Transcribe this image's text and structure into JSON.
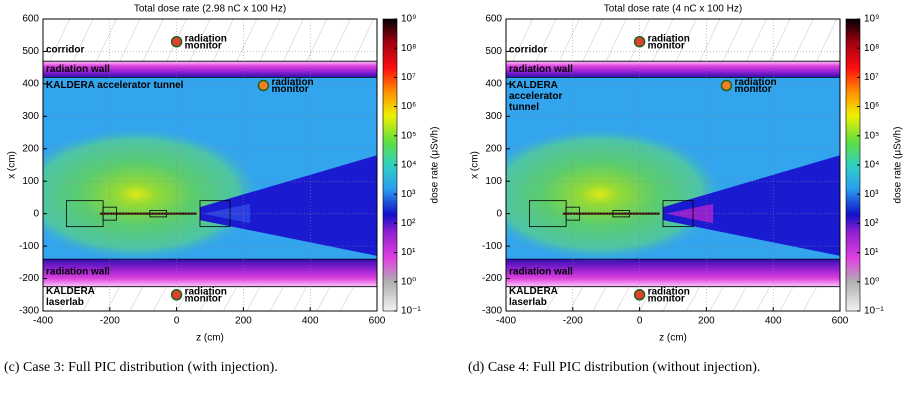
{
  "chart_data": [
    {
      "type": "heatmap",
      "title": "Total dose rate (2.98 nC x 100 Hz)",
      "x_label": "z (cm)",
      "y_label": "x (cm)",
      "xlim": [
        -400,
        600
      ],
      "xticks": [
        -400,
        -200,
        0,
        200,
        400,
        600
      ],
      "ylim": [
        -300,
        600
      ],
      "yticks": [
        -300,
        -200,
        -100,
        0,
        100,
        200,
        300,
        400,
        500,
        600
      ],
      "grid": true,
      "colorbar_label": "dose rate (μSv/h)",
      "colorbar_log": true,
      "clim": [
        0.1,
        1000000000
      ],
      "cticks": [
        {
          "value": 0.1,
          "label": "10⁻¹"
        },
        {
          "value": 1,
          "label": "10⁰"
        },
        {
          "value": 10,
          "label": "10¹"
        },
        {
          "value": 100,
          "label": "10²"
        },
        {
          "value": 1000,
          "label": "10³"
        },
        {
          "value": 10000,
          "label": "10⁴"
        },
        {
          "value": 100000,
          "label": "10⁵"
        },
        {
          "value": 1000000,
          "label": "10⁶"
        },
        {
          "value": 10000000,
          "label": "10⁷"
        },
        {
          "value": 100000000,
          "label": "10⁸"
        },
        {
          "value": 1000000000,
          "label": "10⁹"
        }
      ],
      "annotations": {
        "corridor": "corridor",
        "wall": "radiation wall",
        "tunnel": [
          "KALDERA accelerator tunnel"
        ],
        "laserlab": [
          "KALDERA",
          "laserlab"
        ],
        "monitor": [
          "radiation",
          "monitor"
        ]
      },
      "caption": "(c) Case 3: Full PIC distribution (with injection)."
    },
    {
      "type": "heatmap",
      "title": "Total dose rate (4 nC x 100 Hz)",
      "x_label": "z (cm)",
      "y_label": "x (cm)",
      "xlim": [
        -400,
        600
      ],
      "xticks": [
        -400,
        -200,
        0,
        200,
        400,
        600
      ],
      "ylim": [
        -300,
        600
      ],
      "yticks": [
        -300,
        -200,
        -100,
        0,
        100,
        200,
        300,
        400,
        500,
        600
      ],
      "grid": true,
      "colorbar_label": "dose rate (μSv/h)",
      "colorbar_log": true,
      "clim": [
        0.1,
        1000000000
      ],
      "cticks": [
        {
          "value": 0.1,
          "label": "10⁻¹"
        },
        {
          "value": 1,
          "label": "10⁰"
        },
        {
          "value": 10,
          "label": "10¹"
        },
        {
          "value": 100,
          "label": "10²"
        },
        {
          "value": 1000,
          "label": "10³"
        },
        {
          "value": 10000,
          "label": "10⁴"
        },
        {
          "value": 100000,
          "label": "10⁵"
        },
        {
          "value": 1000000,
          "label": "10⁶"
        },
        {
          "value": 10000000,
          "label": "10⁷"
        },
        {
          "value": 100000000,
          "label": "10⁸"
        },
        {
          "value": 1000000000,
          "label": "10⁹"
        }
      ],
      "annotations": {
        "corridor": "corridor",
        "wall": "radiation wall",
        "tunnel": [
          "KALDERA",
          "accelerator",
          "tunnel"
        ],
        "laserlab": [
          "KALDERA",
          "laserlab"
        ],
        "monitor": [
          "radiation",
          "monitor"
        ]
      },
      "caption": "(d) Case 4: Full PIC distribution (without injection)."
    }
  ]
}
